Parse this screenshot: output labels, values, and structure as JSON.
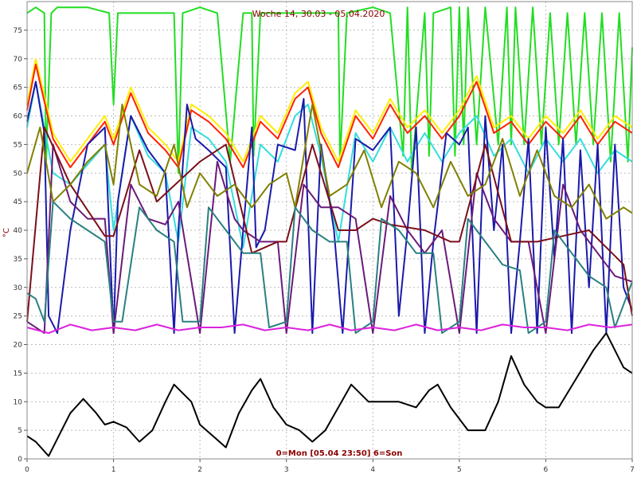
{
  "chart_data": {
    "type": "line",
    "title": "Woche 14, 30.03 - 05.04.2020",
    "ylabel": "°C",
    "footer": "0=Mon [05.04 23:50] 6=Son",
    "xlim": [
      0,
      7
    ],
    "ylim": [
      0,
      80
    ],
    "x_ticks": [
      "0",
      "1",
      "2",
      "3",
      "4",
      "5",
      "6",
      "7"
    ],
    "y_ticks": [
      "0",
      "5",
      "10",
      "15",
      "20",
      "25",
      "30",
      "35",
      "40",
      "45",
      "50",
      "55",
      "60",
      "65",
      "70",
      "75"
    ],
    "grid": true,
    "series": [
      {
        "color": "#22dd22",
        "x": [
          0,
          0.1,
          0.2,
          0.22,
          0.28,
          0.35,
          0.5,
          0.7,
          0.95,
          1.0,
          1.05,
          1.2,
          1.5,
          1.7,
          1.75,
          1.8,
          2.0,
          2.2,
          2.35,
          2.5,
          2.6,
          2.62,
          2.7,
          3.0,
          3.3,
          3.5,
          3.6,
          3.62,
          3.7,
          4.0,
          4.2,
          4.35,
          4.4,
          4.45,
          4.6,
          4.65,
          4.7,
          4.9,
          4.95,
          5.0,
          5.05,
          5.1,
          5.2,
          5.3,
          5.45,
          5.55,
          5.6,
          5.65,
          5.75,
          5.85,
          5.95,
          6.05,
          6.15,
          6.25,
          6.35,
          6.45,
          6.55,
          6.65,
          6.75,
          6.85,
          6.95,
          7.0
        ],
        "y": [
          78,
          79,
          78,
          52,
          78,
          79,
          79,
          79,
          78,
          62,
          78,
          78,
          78,
          78,
          50,
          78,
          79,
          78,
          52,
          78,
          78,
          53,
          78,
          78,
          78,
          78,
          78,
          52,
          78,
          79,
          78,
          53,
          79,
          50,
          78,
          53,
          78,
          79,
          53,
          79,
          55,
          79,
          55,
          79,
          55,
          79,
          55,
          79,
          55,
          79,
          55,
          78,
          55,
          78,
          55,
          78,
          55,
          78,
          52,
          78,
          52,
          72
        ]
      },
      {
        "color": "#ffee00",
        "x": [
          0,
          0.1,
          0.3,
          0.5,
          0.9,
          1.0,
          1.2,
          1.4,
          1.6,
          1.75,
          1.9,
          2.1,
          2.3,
          2.5,
          2.7,
          2.9,
          3.1,
          3.25,
          3.4,
          3.6,
          3.8,
          4.0,
          4.2,
          4.4,
          4.6,
          4.8,
          5.0,
          5.2,
          5.4,
          5.6,
          5.8,
          6.0,
          6.2,
          6.4,
          6.6,
          6.8,
          7.0
        ],
        "y": [
          62,
          70,
          57,
          52,
          60,
          56,
          65,
          58,
          55,
          52,
          62,
          60,
          57,
          52,
          60,
          57,
          64,
          66,
          58,
          52,
          61,
          57,
          63,
          58,
          61,
          57,
          61,
          67,
          58,
          60,
          56,
          60,
          57,
          61,
          56,
          60,
          58
        ]
      },
      {
        "color": "#ff2200",
        "x": [
          0,
          0.1,
          0.3,
          0.5,
          0.9,
          1.0,
          1.2,
          1.4,
          1.6,
          1.75,
          1.9,
          2.1,
          2.3,
          2.5,
          2.7,
          2.9,
          3.1,
          3.25,
          3.4,
          3.6,
          3.8,
          4.0,
          4.2,
          4.4,
          4.6,
          4.8,
          5.0,
          5.2,
          5.4,
          5.6,
          5.8,
          6.0,
          6.2,
          6.4,
          6.6,
          6.8,
          7.0
        ],
        "y": [
          61,
          69,
          56,
          51,
          59,
          55,
          64,
          57,
          54,
          51,
          61,
          59,
          56,
          51,
          59,
          56,
          63,
          65,
          57,
          51,
          60,
          56,
          62,
          57,
          60,
          56,
          60,
          66,
          57,
          59,
          55,
          59,
          56,
          60,
          55,
          59,
          57
        ]
      },
      {
        "color": "#33dddd",
        "x": [
          0,
          0.1,
          0.3,
          0.5,
          0.9,
          1.0,
          1.2,
          1.4,
          1.6,
          1.75,
          1.9,
          2.1,
          2.3,
          2.5,
          2.7,
          2.9,
          3.1,
          3.25,
          3.4,
          3.6,
          3.8,
          4.0,
          4.2,
          4.4,
          4.6,
          4.8,
          5.0,
          5.2,
          5.4,
          5.6,
          5.8,
          6.0,
          6.2,
          6.4,
          6.6,
          6.8,
          7.0
        ],
        "y": [
          58,
          66,
          50,
          48,
          55,
          40,
          60,
          53,
          50,
          38,
          58,
          56,
          52,
          37,
          55,
          52,
          60,
          62,
          53,
          38,
          57,
          52,
          58,
          52,
          57,
          52,
          57,
          60,
          53,
          56,
          50,
          56,
          52,
          56,
          50,
          54,
          52
        ]
      },
      {
        "color": "#1a1aaa",
        "x": [
          0,
          0.1,
          0.2,
          0.25,
          0.35,
          0.5,
          0.7,
          0.9,
          1.0,
          1.05,
          1.2,
          1.4,
          1.6,
          1.7,
          1.75,
          1.85,
          1.95,
          2.1,
          2.3,
          2.4,
          2.5,
          2.6,
          2.65,
          2.75,
          2.9,
          3.1,
          3.2,
          3.3,
          3.4,
          3.55,
          3.65,
          3.8,
          4.0,
          4.2,
          4.3,
          4.4,
          4.5,
          4.6,
          4.7,
          4.85,
          5.0,
          5.1,
          5.2,
          5.3,
          5.4,
          5.5,
          5.6,
          5.7,
          5.8,
          5.9,
          6.0,
          6.1,
          6.2,
          6.3,
          6.4,
          6.5,
          6.6,
          6.7,
          6.8,
          6.9,
          7.0
        ],
        "y": [
          59,
          66,
          57,
          25,
          22,
          40,
          55,
          58,
          22,
          45,
          60,
          54,
          50,
          22,
          40,
          62,
          56,
          54,
          51,
          22,
          40,
          58,
          37,
          40,
          55,
          54,
          63,
          22,
          55,
          40,
          22,
          56,
          54,
          58,
          25,
          40,
          58,
          22,
          38,
          57,
          55,
          58,
          22,
          60,
          40,
          55,
          22,
          38,
          56,
          22,
          58,
          35,
          56,
          22,
          54,
          30,
          55,
          22,
          55,
          30,
          26
        ]
      },
      {
        "color": "#6a1a7a",
        "x": [
          0,
          0.2,
          0.3,
          0.5,
          0.7,
          0.9,
          1.0,
          1.2,
          1.4,
          1.6,
          1.75,
          2.0,
          2.2,
          2.4,
          2.5,
          2.7,
          2.9,
          3.0,
          3.2,
          3.4,
          3.6,
          3.8,
          4.0,
          4.2,
          4.4,
          4.6,
          4.8,
          5.0,
          5.2,
          5.4,
          5.6,
          5.8,
          6.0,
          6.2,
          6.4,
          6.6,
          6.8,
          7.0
        ],
        "y": [
          24,
          22,
          55,
          45,
          42,
          42,
          22,
          48,
          42,
          41,
          45,
          22,
          52,
          42,
          40,
          38,
          38,
          22,
          48,
          44,
          44,
          42,
          22,
          46,
          40,
          36,
          40,
          22,
          50,
          42,
          38,
          38,
          22,
          48,
          40,
          36,
          32,
          31
        ]
      },
      {
        "color": "#7b0f1a",
        "x": [
          0,
          0.2,
          0.5,
          0.9,
          1.0,
          1.3,
          1.5,
          2.0,
          2.3,
          2.6,
          2.9,
          3.0,
          3.3,
          3.6,
          3.8,
          4.0,
          4.2,
          4.6,
          4.9,
          5.0,
          5.3,
          5.6,
          5.9,
          6.2,
          6.5,
          6.9,
          7.0
        ],
        "y": [
          24,
          58,
          48,
          39,
          39,
          54,
          45,
          52,
          55,
          36,
          38,
          38,
          55,
          40,
          40,
          42,
          41,
          40,
          38,
          38,
          55,
          38,
          38,
          39,
          40,
          34,
          25
        ]
      },
      {
        "color": "#808000",
        "x": [
          0,
          0.15,
          0.3,
          0.5,
          0.7,
          0.9,
          1.0,
          1.1,
          1.3,
          1.5,
          1.7,
          1.85,
          2.0,
          2.2,
          2.4,
          2.6,
          2.8,
          3.0,
          3.1,
          3.3,
          3.5,
          3.7,
          3.9,
          4.1,
          4.3,
          4.5,
          4.7,
          4.9,
          5.1,
          5.3,
          5.5,
          5.7,
          5.9,
          6.1,
          6.3,
          6.5,
          6.7,
          6.9,
          7.0
        ],
        "y": [
          50,
          58,
          45,
          48,
          52,
          55,
          48,
          62,
          48,
          46,
          55,
          44,
          50,
          46,
          48,
          44,
          48,
          50,
          44,
          62,
          46,
          48,
          54,
          44,
          52,
          50,
          44,
          52,
          46,
          48,
          56,
          46,
          54,
          46,
          44,
          48,
          42,
          44,
          43
        ]
      },
      {
        "color": "#2a8080",
        "x": [
          0,
          0.1,
          0.2,
          0.3,
          0.5,
          0.7,
          0.9,
          1.0,
          1.1,
          1.3,
          1.5,
          1.7,
          1.8,
          2.0,
          2.1,
          2.3,
          2.5,
          2.7,
          2.8,
          3.0,
          3.1,
          3.3,
          3.5,
          3.7,
          3.8,
          4.0,
          4.1,
          4.3,
          4.5,
          4.7,
          4.8,
          5.0,
          5.1,
          5.3,
          5.5,
          5.7,
          5.8,
          6.0,
          6.1,
          6.3,
          6.5,
          6.7,
          6.8,
          7.0
        ],
        "y": [
          29,
          28,
          24,
          45,
          42,
          40,
          38,
          24,
          24,
          44,
          40,
          38,
          24,
          24,
          44,
          40,
          36,
          36,
          23,
          24,
          44,
          40,
          38,
          38,
          22,
          24,
          42,
          40,
          36,
          36,
          22,
          24,
          42,
          38,
          34,
          33,
          22,
          24,
          40,
          36,
          32,
          30,
          23,
          31
        ]
      },
      {
        "color": "#dd22dd",
        "x": [
          0,
          0.25,
          0.5,
          0.75,
          1.0,
          1.25,
          1.5,
          1.75,
          2.0,
          2.25,
          2.5,
          2.75,
          3.0,
          3.25,
          3.5,
          3.75,
          4.0,
          4.25,
          4.5,
          4.75,
          5.0,
          5.25,
          5.5,
          5.75,
          6.0,
          6.25,
          6.5,
          6.75,
          7.0
        ],
        "y": [
          23,
          22,
          23.5,
          22.5,
          23,
          22.5,
          23.5,
          22.5,
          23,
          23,
          23.5,
          22.5,
          23,
          22.5,
          23.5,
          22.5,
          23,
          22.5,
          23.5,
          22.5,
          23,
          22.5,
          23.5,
          23,
          23,
          22.5,
          23.5,
          23,
          23.5
        ]
      },
      {
        "color": "#000000",
        "x": [
          0,
          0.1,
          0.25,
          0.4,
          0.5,
          0.65,
          0.8,
          0.9,
          1.0,
          1.15,
          1.3,
          1.45,
          1.6,
          1.7,
          1.9,
          2.0,
          2.15,
          2.3,
          2.45,
          2.6,
          2.7,
          2.85,
          3.0,
          3.15,
          3.3,
          3.45,
          3.6,
          3.75,
          3.95,
          4.1,
          4.3,
          4.5,
          4.65,
          4.75,
          4.9,
          5.1,
          5.3,
          5.45,
          5.6,
          5.75,
          5.9,
          6.0,
          6.15,
          6.35,
          6.55,
          6.7,
          6.8,
          6.9,
          7.0
        ],
        "y": [
          4,
          3,
          0.5,
          5,
          8,
          10.5,
          8,
          6,
          6.5,
          5.5,
          3,
          5,
          10,
          13,
          10,
          6,
          4,
          2,
          8,
          12,
          14,
          9,
          6,
          5,
          3,
          5,
          9,
          13,
          10,
          10,
          10,
          9,
          12,
          13,
          9,
          5,
          5,
          10,
          18,
          13,
          10,
          9,
          9,
          14,
          19,
          22,
          19,
          16,
          15
        ]
      }
    ]
  }
}
